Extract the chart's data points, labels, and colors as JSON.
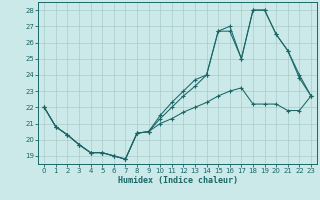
{
  "xlabel": "Humidex (Indice chaleur)",
  "background_color": "#cce9e9",
  "grid_color": "#aacccc",
  "line_color": "#1a6666",
  "xlim": [
    -0.5,
    23.5
  ],
  "ylim": [
    18.5,
    28.5
  ],
  "yticks": [
    19,
    20,
    21,
    22,
    23,
    24,
    25,
    26,
    27,
    28
  ],
  "xticks": [
    0,
    1,
    2,
    3,
    4,
    5,
    6,
    7,
    8,
    9,
    10,
    11,
    12,
    13,
    14,
    15,
    16,
    17,
    18,
    19,
    20,
    21,
    22,
    23
  ],
  "series1_x": [
    0,
    1,
    2,
    3,
    4,
    5,
    6,
    7,
    8,
    9,
    10,
    11,
    12,
    13,
    14,
    15,
    16,
    17,
    18,
    19,
    20,
    21,
    22,
    23
  ],
  "series1_y": [
    22.0,
    20.8,
    20.3,
    19.7,
    19.2,
    19.2,
    19.0,
    18.8,
    20.4,
    20.5,
    21.0,
    21.3,
    21.7,
    22.0,
    22.3,
    22.7,
    23.0,
    23.2,
    22.2,
    22.2,
    22.2,
    21.8,
    21.8,
    22.7
  ],
  "series2_x": [
    0,
    1,
    2,
    3,
    4,
    5,
    6,
    7,
    8,
    9,
    10,
    11,
    12,
    13,
    14,
    15,
    16,
    17,
    18,
    19,
    20,
    21,
    22,
    23
  ],
  "series2_y": [
    22.0,
    20.8,
    20.3,
    19.7,
    19.2,
    19.2,
    19.0,
    18.8,
    20.4,
    20.5,
    21.5,
    22.3,
    23.0,
    23.7,
    24.0,
    26.7,
    27.0,
    25.0,
    28.0,
    28.0,
    26.5,
    25.5,
    24.0,
    22.7
  ],
  "series3_x": [
    0,
    1,
    2,
    3,
    4,
    5,
    6,
    7,
    8,
    9,
    10,
    11,
    12,
    13,
    14,
    15,
    16,
    17,
    18,
    19,
    20,
    21,
    22,
    23
  ],
  "series3_y": [
    22.0,
    20.8,
    20.3,
    19.7,
    19.2,
    19.2,
    19.0,
    18.8,
    20.4,
    20.5,
    21.3,
    22.0,
    22.7,
    23.3,
    24.0,
    26.7,
    26.7,
    25.0,
    28.0,
    28.0,
    26.5,
    25.5,
    23.8,
    22.7
  ]
}
